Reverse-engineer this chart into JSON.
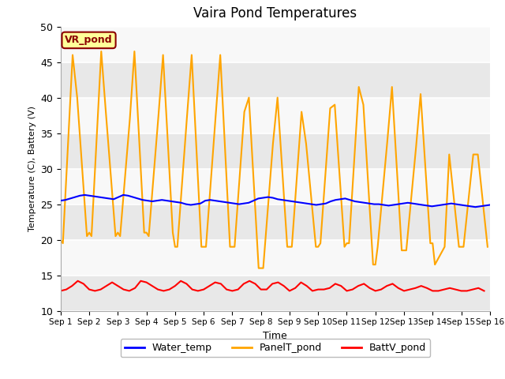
{
  "title": "Vaira Pond Temperatures",
  "xlabel": "Time",
  "ylabel": "Temperature (C), Battery (V)",
  "ylim": [
    10,
    50
  ],
  "xlim": [
    0,
    15
  ],
  "xtick_labels": [
    "Sep 1",
    "Sep 2",
    "Sep 3",
    "Sep 4",
    "Sep 5",
    "Sep 6",
    "Sep 7",
    "Sep 8",
    "Sep 9",
    "Sep 10",
    "Sep 11",
    "Sep 12",
    "Sep 13",
    "Sep 14",
    "Sep 15",
    "Sep 16"
  ],
  "plot_bg_color": "#f0f0f0",
  "fig_bg_color": "#ffffff",
  "site_label": "VR_pond",
  "site_label_color": "#8b0000",
  "site_label_bg": "#ffff99",
  "legend_entries": [
    "Water_temp",
    "PanelT_pond",
    "BattV_pond"
  ],
  "legend_colors": [
    "blue",
    "orange",
    "red"
  ],
  "stripe_colors": [
    "#e8e8e8",
    "#f8f8f8"
  ],
  "water_temp": [
    25.5,
    25.6,
    25.8,
    26.0,
    26.2,
    26.3,
    26.2,
    26.1,
    26.0,
    25.9,
    25.8,
    25.7,
    26.0,
    26.3,
    26.2,
    26.0,
    25.8,
    25.6,
    25.5,
    25.4,
    25.5,
    25.6,
    25.5,
    25.4,
    25.3,
    25.2,
    25.0,
    24.9,
    25.0,
    25.1,
    25.5,
    25.6,
    25.5,
    25.4,
    25.3,
    25.2,
    25.1,
    25.0,
    25.1,
    25.2,
    25.5,
    25.8,
    25.9,
    26.0,
    25.9,
    25.7,
    25.6,
    25.5,
    25.4,
    25.3,
    25.2,
    25.1,
    25.0,
    24.9,
    25.0,
    25.1,
    25.4,
    25.6,
    25.7,
    25.8,
    25.6,
    25.4,
    25.3,
    25.2,
    25.1,
    25.0,
    25.0,
    24.9,
    24.8,
    24.9,
    25.0,
    25.1,
    25.2,
    25.1,
    25.0,
    24.9,
    24.8,
    24.7,
    24.8,
    24.9,
    25.0,
    25.1,
    25.0,
    24.9,
    24.8,
    24.7,
    24.6,
    24.7,
    24.8,
    24.9
  ],
  "panel_temp_x": [
    0.0,
    0.08,
    0.42,
    0.58,
    0.92,
    1.0,
    1.08,
    1.42,
    1.58,
    1.92,
    2.0,
    2.08,
    2.42,
    2.58,
    2.92,
    3.0,
    3.08,
    3.42,
    3.58,
    3.92,
    4.0,
    4.08,
    4.42,
    4.58,
    4.92,
    5.0,
    5.08,
    5.42,
    5.58,
    5.92,
    6.0,
    6.08,
    6.42,
    6.58,
    6.92,
    7.0,
    7.08,
    7.42,
    7.58,
    7.92,
    8.0,
    8.08,
    8.42,
    8.58,
    8.92,
    9.0,
    9.08,
    9.42,
    9.58,
    9.92,
    10.0,
    10.08,
    10.42,
    10.58,
    10.92,
    11.0,
    11.08,
    11.42,
    11.58,
    11.92,
    12.0,
    12.08,
    12.42,
    12.58,
    12.92,
    13.0,
    13.08,
    13.42,
    13.58,
    13.92,
    14.0,
    14.08,
    14.42,
    14.58,
    14.92
  ],
  "panel_temp_y": [
    20.0,
    19.5,
    46.0,
    40.0,
    20.5,
    21.0,
    20.5,
    46.5,
    38.0,
    20.5,
    21.0,
    20.5,
    37.0,
    46.5,
    21.0,
    21.0,
    20.5,
    37.5,
    46.0,
    21.0,
    19.0,
    19.0,
    37.5,
    46.0,
    19.0,
    19.0,
    19.0,
    37.5,
    46.0,
    19.0,
    19.0,
    19.0,
    38.0,
    40.0,
    16.0,
    16.0,
    16.0,
    33.5,
    40.0,
    19.0,
    19.0,
    19.0,
    38.0,
    33.5,
    19.0,
    19.0,
    19.5,
    38.5,
    39.0,
    19.0,
    19.5,
    19.5,
    41.5,
    39.0,
    16.5,
    16.5,
    19.0,
    34.0,
    41.5,
    18.5,
    18.5,
    18.5,
    33.0,
    40.5,
    19.5,
    19.5,
    16.5,
    19.0,
    32.0,
    19.0,
    19.0,
    19.0,
    32.0,
    32.0,
    19.0
  ],
  "batt_temp_x": [
    0.0,
    0.2,
    0.4,
    0.6,
    0.8,
    1.0,
    1.2,
    1.4,
    1.6,
    1.8,
    2.0,
    2.2,
    2.4,
    2.6,
    2.8,
    3.0,
    3.2,
    3.4,
    3.6,
    3.8,
    4.0,
    4.2,
    4.4,
    4.6,
    4.8,
    5.0,
    5.2,
    5.4,
    5.6,
    5.8,
    6.0,
    6.2,
    6.4,
    6.6,
    6.8,
    7.0,
    7.2,
    7.4,
    7.6,
    7.8,
    8.0,
    8.2,
    8.4,
    8.6,
    8.8,
    9.0,
    9.2,
    9.4,
    9.6,
    9.8,
    10.0,
    10.2,
    10.4,
    10.6,
    10.8,
    11.0,
    11.2,
    11.4,
    11.6,
    11.8,
    12.0,
    12.2,
    12.4,
    12.6,
    12.8,
    13.0,
    13.2,
    13.4,
    13.6,
    13.8,
    14.0,
    14.2,
    14.4,
    14.6,
    14.8
  ],
  "batt_temp_y": [
    12.8,
    13.0,
    13.5,
    14.2,
    13.8,
    13.0,
    12.8,
    13.0,
    13.5,
    14.0,
    13.5,
    13.0,
    12.8,
    13.2,
    14.2,
    14.0,
    13.5,
    13.0,
    12.8,
    13.0,
    13.5,
    14.2,
    13.8,
    13.0,
    12.8,
    13.0,
    13.5,
    14.0,
    13.8,
    13.0,
    12.8,
    13.0,
    13.8,
    14.2,
    13.8,
    13.0,
    13.0,
    13.8,
    14.0,
    13.5,
    12.8,
    13.2,
    14.0,
    13.5,
    12.8,
    13.0,
    13.0,
    13.2,
    13.8,
    13.5,
    12.8,
    13.0,
    13.5,
    13.8,
    13.2,
    12.8,
    13.0,
    13.5,
    13.8,
    13.2,
    12.8,
    13.0,
    13.2,
    13.5,
    13.2,
    12.8,
    12.8,
    13.0,
    13.2,
    13.0,
    12.8,
    12.8,
    13.0,
    13.2,
    12.8
  ],
  "yticks": [
    10,
    15,
    20,
    25,
    30,
    35,
    40,
    45,
    50
  ]
}
